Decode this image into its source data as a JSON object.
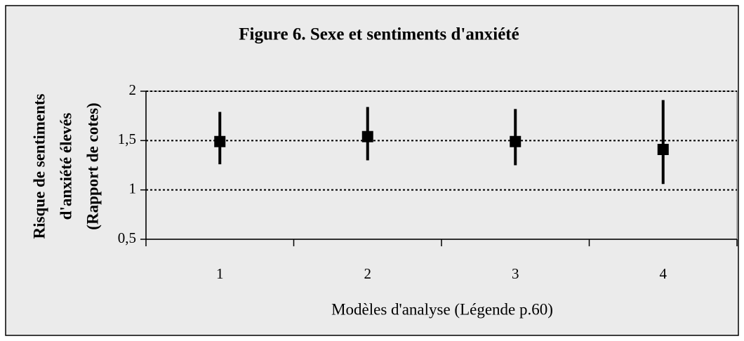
{
  "chart_data": {
    "type": "errorbar",
    "title": "Figure 6. Sexe et sentiments d'anxiété",
    "xlabel": "Modèles d'analyse (Légende p.60)",
    "ylabel": [
      "Risque de sentiments",
      "d'anxiété élevés",
      "(Rapport de cotes)"
    ],
    "categories": [
      "1",
      "2",
      "3",
      "4"
    ],
    "values": [
      1.49,
      1.54,
      1.49,
      1.41
    ],
    "lower": [
      1.26,
      1.3,
      1.25,
      1.06
    ],
    "upper": [
      1.79,
      1.84,
      1.82,
      1.91
    ],
    "color": "#000000",
    "ylim": [
      0.5,
      2
    ],
    "yticks": [
      {
        "value": 0.5,
        "label": "0,5"
      },
      1,
      {
        "value": 1.5,
        "label": "1,5"
      },
      2
    ],
    "grid": true
  }
}
